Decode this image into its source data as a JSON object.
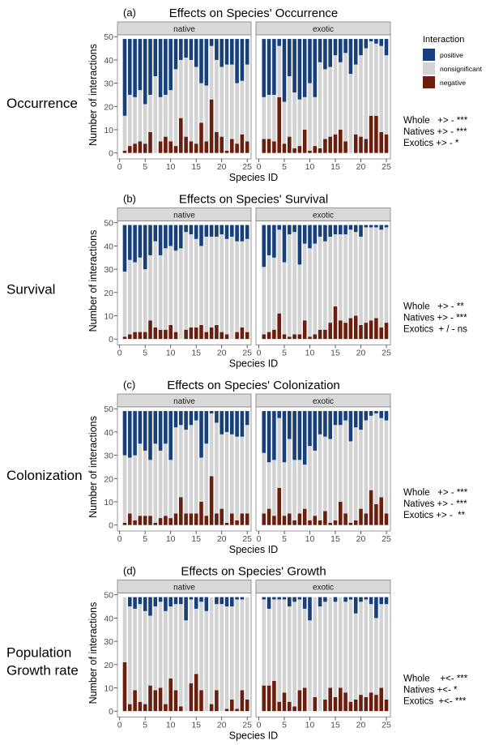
{
  "colors": {
    "positive": "#173f7a",
    "nonsignificant": "#d3d3d3",
    "negative": "#6a1f0e"
  },
  "legend": {
    "title": "Interaction",
    "placement": "top-right",
    "items": [
      "positive",
      "nonsignificant",
      "negative"
    ]
  },
  "chart_data": [
    {
      "type": "bar",
      "stacked": true,
      "tag": "(a)",
      "title": "Effects on Species' Occurrence",
      "row_label": [
        "Occurrence"
      ],
      "xlabel": "Species ID",
      "ylabel": "Number of interactions",
      "ylim": [
        0,
        50
      ],
      "yticks": [
        0,
        10,
        20,
        30,
        40,
        50
      ],
      "xticks": [
        0,
        5,
        10,
        15,
        20,
        25
      ],
      "stats": [
        "Whole   +> - ***",
        "Natives +> - ***",
        "Exotics +> - *"
      ],
      "x": [
        1,
        2,
        3,
        4,
        5,
        6,
        7,
        8,
        9,
        10,
        11,
        12,
        13,
        14,
        15,
        16,
        17,
        18,
        19,
        20,
        21,
        22,
        23,
        24,
        25
      ],
      "facets": [
        {
          "name": "native",
          "negative": [
            1,
            3,
            4,
            5,
            4,
            9,
            0,
            5,
            7,
            5,
            3,
            15,
            7,
            5,
            4,
            13,
            5,
            23,
            9,
            7,
            1,
            6,
            4,
            8,
            5
          ],
          "nonsignificant": [
            15,
            22,
            20,
            22,
            17,
            16,
            33,
            19,
            18,
            22,
            33,
            25,
            34,
            35,
            33,
            17,
            24,
            23,
            31,
            30,
            37,
            32,
            26,
            23,
            33
          ],
          "positive": [
            33,
            24,
            25,
            22,
            28,
            24,
            16,
            25,
            24,
            22,
            13,
            9,
            8,
            9,
            12,
            19,
            20,
            3,
            9,
            12,
            11,
            11,
            19,
            18,
            11
          ]
        },
        {
          "name": "exotic",
          "negative": [
            6,
            6,
            5,
            24,
            4,
            7,
            2,
            3,
            10,
            1,
            3,
            2,
            6,
            7,
            8,
            10,
            5,
            0,
            8,
            7,
            6,
            16,
            16,
            9,
            8
          ],
          "nonsignificant": [
            18,
            19,
            20,
            22,
            18,
            26,
            24,
            20,
            14,
            29,
            21,
            37,
            30,
            30,
            34,
            29,
            38,
            34,
            30,
            35,
            39,
            32,
            31,
            37,
            34
          ],
          "positive": [
            25,
            24,
            24,
            3,
            27,
            16,
            23,
            26,
            25,
            19,
            25,
            10,
            13,
            12,
            7,
            10,
            6,
            15,
            11,
            7,
            4,
            1,
            2,
            3,
            7
          ]
        }
      ]
    },
    {
      "type": "bar",
      "stacked": true,
      "tag": "(b)",
      "title": "Effects on Species' Survival",
      "row_label": [
        "Survival"
      ],
      "xlabel": "Species ID",
      "ylabel": "Number of interactions",
      "ylim": [
        0,
        50
      ],
      "yticks": [
        0,
        10,
        20,
        30,
        40,
        50
      ],
      "xticks": [
        0,
        5,
        10,
        15,
        20,
        25
      ],
      "stats": [
        "Whole   +> - **",
        "Natives +> - ***",
        "Exotics  + / - ns"
      ],
      "x": [
        1,
        2,
        3,
        4,
        5,
        6,
        7,
        8,
        9,
        10,
        11,
        12,
        13,
        14,
        15,
        16,
        17,
        18,
        19,
        20,
        21,
        22,
        23,
        24,
        25
      ],
      "facets": [
        {
          "name": "native",
          "negative": [
            1,
            2,
            3,
            3,
            3,
            8,
            5,
            4,
            4,
            6,
            3,
            0,
            4,
            5,
            5,
            6,
            3,
            5,
            6,
            3,
            2,
            0,
            3,
            5,
            3
          ],
          "nonsignificant": [
            28,
            32,
            30,
            32,
            27,
            28,
            37,
            32,
            35,
            34,
            35,
            39,
            42,
            40,
            38,
            34,
            41,
            39,
            38,
            42,
            41,
            44,
            39,
            37,
            40
          ],
          "positive": [
            20,
            15,
            16,
            14,
            19,
            13,
            7,
            13,
            10,
            9,
            11,
            10,
            3,
            4,
            6,
            9,
            5,
            5,
            5,
            4,
            6,
            5,
            7,
            7,
            6
          ]
        },
        {
          "name": "exotic",
          "negative": [
            2,
            3,
            4,
            11,
            2,
            1,
            2,
            2,
            8,
            1,
            2,
            4,
            4,
            7,
            14,
            8,
            7,
            9,
            10,
            6,
            7,
            8,
            9,
            5,
            7
          ],
          "nonsignificant": [
            29,
            33,
            31,
            36,
            31,
            44,
            44,
            30,
            33,
            38,
            39,
            40,
            38,
            37,
            31,
            37,
            38,
            38,
            36,
            38,
            41,
            40,
            39,
            42,
            41
          ],
          "positive": [
            18,
            13,
            14,
            2,
            16,
            4,
            3,
            17,
            8,
            10,
            8,
            5,
            7,
            5,
            4,
            4,
            4,
            2,
            3,
            5,
            1,
            1,
            1,
            2,
            1
          ]
        }
      ]
    },
    {
      "type": "bar",
      "stacked": true,
      "tag": "(c)",
      "title": "Effects on Species' Colonization",
      "row_label": [
        "Colonization"
      ],
      "xlabel": "Species ID",
      "ylabel": "Number of interactions",
      "ylim": [
        0,
        50
      ],
      "yticks": [
        0,
        10,
        20,
        30,
        40,
        50
      ],
      "xticks": [
        0,
        5,
        10,
        15,
        20,
        25
      ],
      "stats": [
        "Whole   +> - ***",
        "Natives +> - ***",
        "Exotics +> -  **"
      ],
      "x": [
        1,
        2,
        3,
        4,
        5,
        6,
        7,
        8,
        9,
        10,
        11,
        12,
        13,
        14,
        15,
        16,
        17,
        18,
        19,
        20,
        21,
        22,
        23,
        24,
        25
      ],
      "facets": [
        {
          "name": "native",
          "negative": [
            1,
            5,
            2,
            4,
            4,
            4,
            1,
            3,
            4,
            3,
            5,
            12,
            5,
            5,
            5,
            10,
            4,
            21,
            5,
            7,
            1,
            5,
            2,
            5,
            5
          ],
          "nonsignificant": [
            29,
            24,
            28,
            31,
            28,
            24,
            34,
            29,
            31,
            25,
            37,
            31,
            36,
            38,
            40,
            19,
            31,
            27,
            39,
            32,
            39,
            34,
            36,
            33,
            38
          ],
          "positive": [
            19,
            20,
            19,
            14,
            17,
            21,
            14,
            17,
            14,
            21,
            7,
            6,
            8,
            6,
            4,
            20,
            14,
            1,
            5,
            10,
            9,
            10,
            11,
            11,
            6
          ]
        },
        {
          "name": "exotic",
          "negative": [
            5,
            7,
            4,
            16,
            4,
            5,
            2,
            5,
            7,
            2,
            4,
            2,
            6,
            1,
            2,
            10,
            5,
            1,
            2,
            7,
            5,
            15,
            9,
            12,
            5
          ],
          "nonsignificant": [
            26,
            20,
            24,
            30,
            23,
            32,
            26,
            23,
            19,
            32,
            28,
            37,
            32,
            36,
            41,
            33,
            40,
            35,
            40,
            34,
            40,
            32,
            39,
            34,
            40
          ],
          "positive": [
            18,
            22,
            21,
            3,
            22,
            12,
            21,
            21,
            23,
            15,
            17,
            10,
            11,
            12,
            6,
            6,
            4,
            13,
            7,
            8,
            4,
            2,
            1,
            3,
            4
          ]
        }
      ]
    },
    {
      "type": "bar",
      "stacked": true,
      "tag": "(d)",
      "title": "Effects on Species' Growth",
      "row_label": [
        "Population",
        "Growth rate"
      ],
      "xlabel": "Species ID",
      "ylabel": "Number of interactions",
      "ylim": [
        0,
        50
      ],
      "yticks": [
        0,
        10,
        20,
        30,
        40,
        50
      ],
      "xticks": [
        0,
        5,
        10,
        15,
        20,
        25
      ],
      "stats": [
        "Whole    +<- ***",
        "Natives +<- *",
        "Exotics  +<- ***"
      ],
      "x": [
        1,
        2,
        3,
        4,
        5,
        6,
        7,
        8,
        9,
        10,
        11,
        12,
        13,
        14,
        15,
        16,
        17,
        18,
        19,
        20,
        21,
        22,
        23,
        24,
        25
      ],
      "facets": [
        {
          "name": "native",
          "negative": [
            21,
            3,
            9,
            4,
            3,
            11,
            9,
            10,
            3,
            14,
            9,
            2,
            0,
            12,
            16,
            9,
            0,
            3,
            9,
            0,
            1,
            5,
            1,
            9,
            5
          ],
          "nonsignificant": [
            28,
            42,
            35,
            42,
            40,
            30,
            36,
            37,
            40,
            31,
            37,
            44,
            39,
            36,
            28,
            38,
            43,
            46,
            37,
            46,
            44,
            40,
            47,
            39,
            44
          ],
          "positive": [
            0,
            4,
            5,
            3,
            6,
            8,
            4,
            2,
            6,
            4,
            3,
            3,
            10,
            1,
            5,
            2,
            6,
            0,
            3,
            3,
            4,
            4,
            1,
            1,
            0
          ]
        },
        {
          "name": "exotic",
          "negative": [
            11,
            11,
            13,
            4,
            8,
            4,
            2,
            9,
            10,
            0,
            6,
            0,
            5,
            10,
            6,
            10,
            8,
            4,
            5,
            7,
            6,
            8,
            7,
            10,
            5
          ],
          "nonsignificant": [
            37,
            33,
            35,
            44,
            40,
            41,
            45,
            39,
            34,
            39,
            43,
            45,
            42,
            39,
            41,
            39,
            39,
            44,
            37,
            40,
            42,
            38,
            33,
            36,
            41
          ],
          "positive": [
            1,
            5,
            1,
            1,
            1,
            4,
            2,
            1,
            5,
            10,
            0,
            4,
            2,
            0,
            2,
            0,
            2,
            1,
            7,
            2,
            1,
            3,
            9,
            3,
            3
          ]
        }
      ]
    }
  ]
}
